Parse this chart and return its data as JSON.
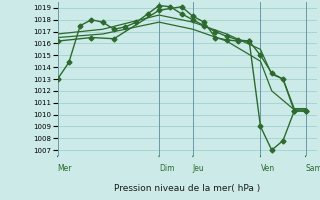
{
  "background_color": "#cceae7",
  "grid_color": "#99cccc",
  "line_color": "#2d6a2d",
  "title": "Pression niveau de la mer( hPa )",
  "ylim": [
    1006.5,
    1019.5
  ],
  "yticks": [
    1007,
    1008,
    1009,
    1010,
    1011,
    1012,
    1013,
    1014,
    1015,
    1016,
    1017,
    1018,
    1019
  ],
  "x_day_labels": [
    "Mer",
    "Dim",
    "Jeu",
    "Ven",
    "Sam"
  ],
  "x_day_positions": [
    0,
    9,
    12,
    18,
    22
  ],
  "xlim": [
    0,
    23
  ],
  "vline_positions": [
    0,
    9,
    12,
    18,
    22
  ],
  "series": [
    {
      "x": [
        0,
        1,
        2,
        3,
        4,
        5,
        6,
        7,
        8,
        9,
        10,
        11,
        12,
        13,
        14,
        15,
        16,
        17,
        18,
        19,
        20,
        21,
        22
      ],
      "y": [
        1013.0,
        1014.4,
        1017.5,
        1018.0,
        1017.8,
        1017.2,
        1017.4,
        1017.8,
        1018.5,
        1019.2,
        1019.1,
        1018.5,
        1018.0,
        1017.5,
        1017.0,
        1016.6,
        1016.3,
        1016.2,
        1015.0,
        1013.5,
        1013.0,
        1010.3,
        1010.3
      ],
      "marker": "D",
      "markersize": 2.5,
      "linewidth": 1.0,
      "zorder": 4
    },
    {
      "x": [
        0,
        4,
        9,
        12,
        15,
        18,
        19,
        20,
        21,
        22
      ],
      "y": [
        1016.8,
        1017.2,
        1018.4,
        1017.8,
        1016.8,
        1015.5,
        1013.4,
        1013.0,
        1010.5,
        1010.5
      ],
      "marker": null,
      "markersize": 0,
      "linewidth": 0.9,
      "zorder": 2
    },
    {
      "x": [
        0,
        4,
        9,
        12,
        15,
        18,
        19,
        20,
        21,
        22
      ],
      "y": [
        1016.5,
        1016.8,
        1017.8,
        1017.2,
        1016.2,
        1014.5,
        1012.0,
        1011.2,
        1010.4,
        1010.4
      ],
      "marker": null,
      "markersize": 0,
      "linewidth": 0.9,
      "zorder": 2
    },
    {
      "x": [
        0,
        3,
        5,
        9,
        11,
        12,
        13,
        14,
        15,
        16,
        17,
        18,
        19,
        20,
        21,
        22
      ],
      "y": [
        1016.2,
        1016.5,
        1016.4,
        1018.8,
        1019.1,
        1018.3,
        1017.8,
        1016.5,
        1016.3,
        1016.2,
        1016.2,
        1009.0,
        1007.0,
        1007.8,
        1010.3,
        1010.3
      ],
      "marker": "D",
      "markersize": 2.5,
      "linewidth": 1.0,
      "zorder": 3
    }
  ],
  "figsize": [
    3.2,
    2.0
  ],
  "dpi": 100
}
